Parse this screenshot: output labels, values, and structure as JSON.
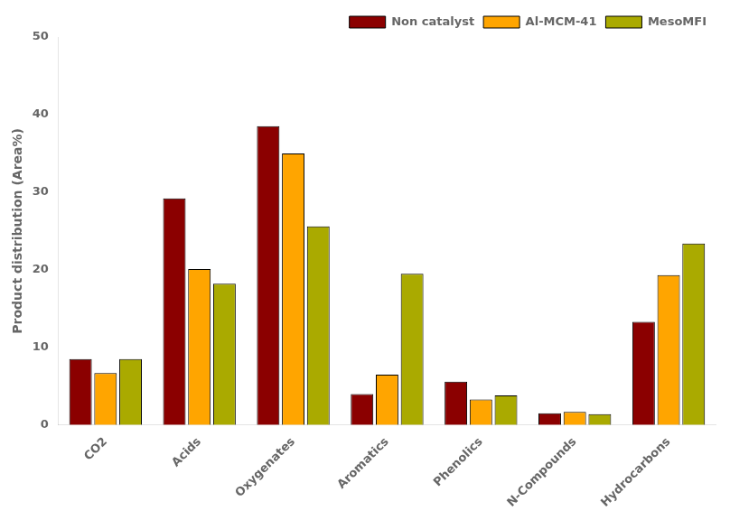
{
  "chart_data": {
    "type": "bar",
    "categories": [
      "CO2",
      "Acids",
      "Oxygenates",
      "Aromatics",
      "Phenolics",
      "N-Compounds",
      "Hydrocarbons"
    ],
    "series": [
      {
        "name": "Non catalyst",
        "color": "#8B0000",
        "values": [
          8.5,
          29.2,
          38.5,
          4.0,
          5.6,
          1.5,
          13.3
        ]
      },
      {
        "name": "Al-MCM-41",
        "color": "#FFA500",
        "values": [
          6.7,
          20.1,
          35.0,
          6.5,
          3.3,
          1.7,
          19.3
        ]
      },
      {
        "name": "MesoMFI",
        "color": "#AAAA00",
        "values": [
          8.5,
          18.2,
          25.6,
          19.5,
          3.8,
          1.4,
          23.4
        ]
      }
    ],
    "ylabel": "Product distribution (Area%)",
    "ylim": [
      0,
      50
    ],
    "yticks": [
      0,
      10,
      20,
      30,
      40,
      50
    ],
    "grid": false,
    "legend": "upper right"
  }
}
